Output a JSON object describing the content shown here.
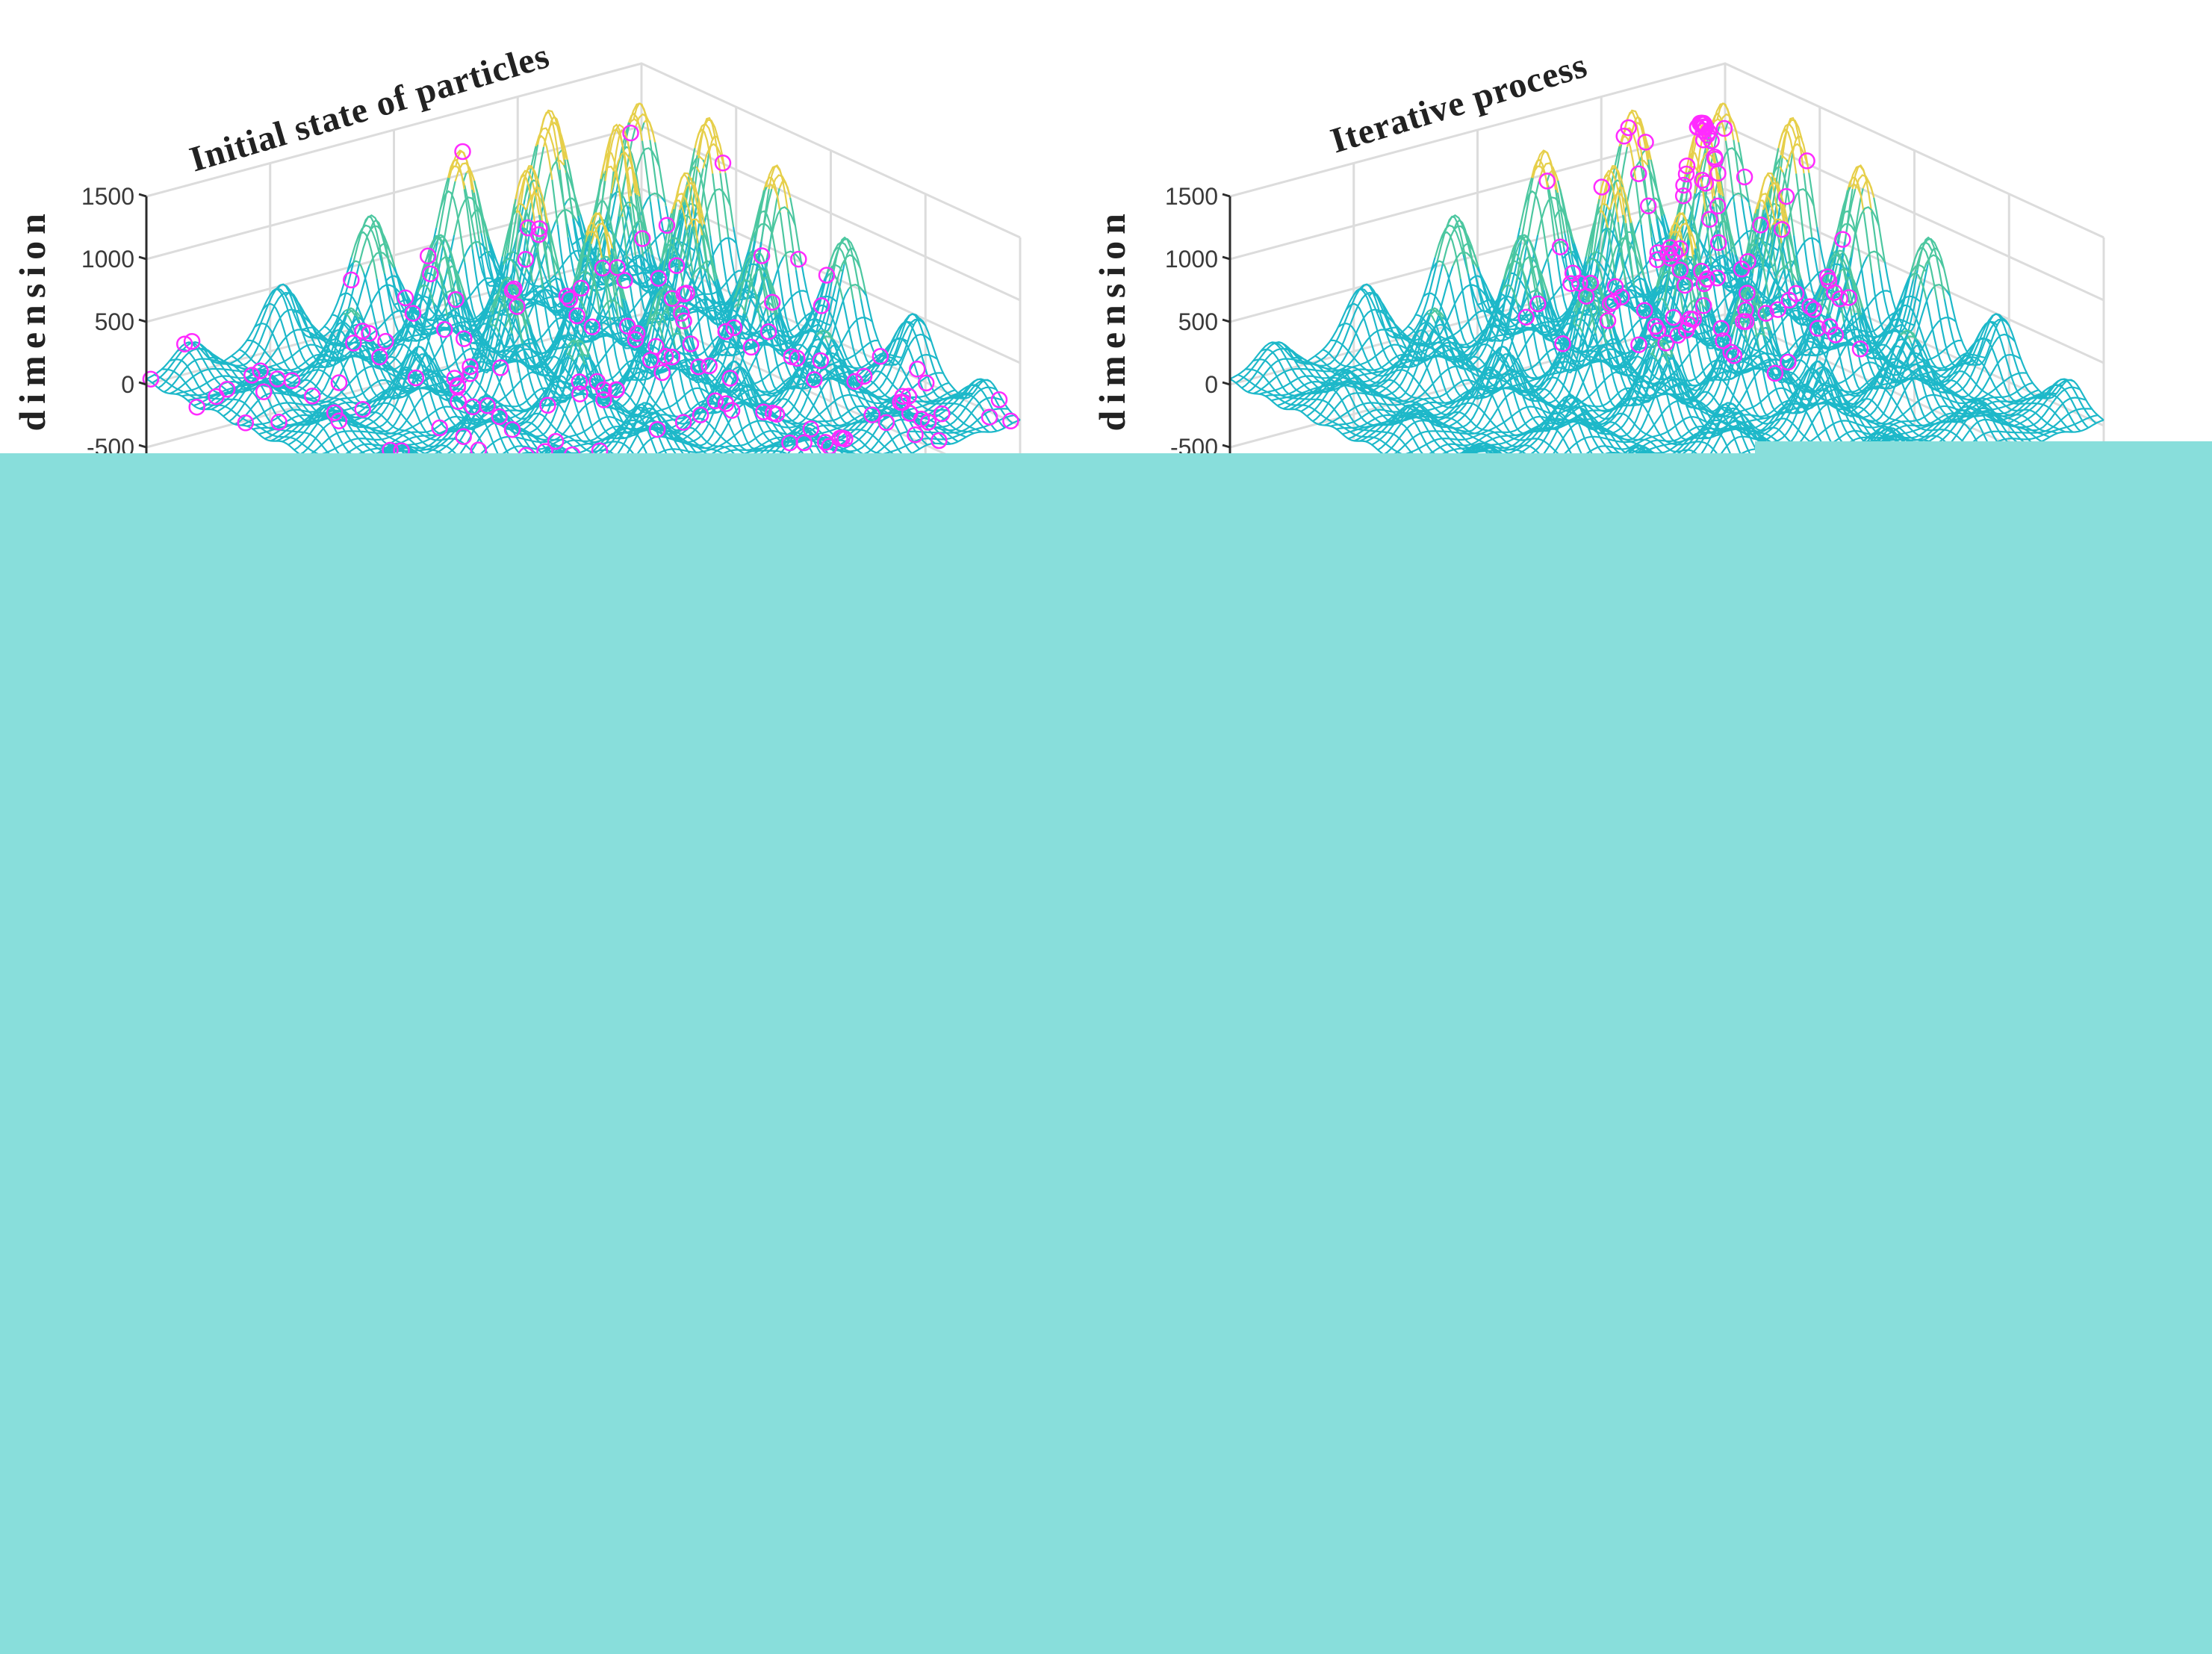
{
  "chart_data": [
    {
      "type": "surface",
      "title": "Initial state of particles",
      "zlabel": "Third dimension",
      "zticks": [
        "1500",
        "1000",
        "500",
        "0",
        "-500"
      ],
      "ztick_values": [
        1500,
        1000,
        500,
        0,
        -500
      ],
      "zlim": [
        -500,
        1500
      ],
      "grid": true,
      "particle_distribution": "scattered"
    },
    {
      "type": "surface",
      "title": "Iterative process",
      "zlabel": "Third dimension",
      "zticks": [
        "1500",
        "1000",
        "500",
        "0",
        "-500"
      ],
      "ztick_values": [
        1500,
        1000,
        500,
        0,
        -500
      ],
      "zlim": [
        -500,
        1500
      ],
      "grid": true,
      "particle_distribution": "converging"
    }
  ],
  "colors": {
    "mesh_low": "#1db8c9",
    "mesh_mid": "#4cc7a0",
    "mesh_high": "#e6cf4a",
    "particle": "#ff2bff",
    "grid": "#dcdcdc",
    "cover": "#88dedb"
  }
}
